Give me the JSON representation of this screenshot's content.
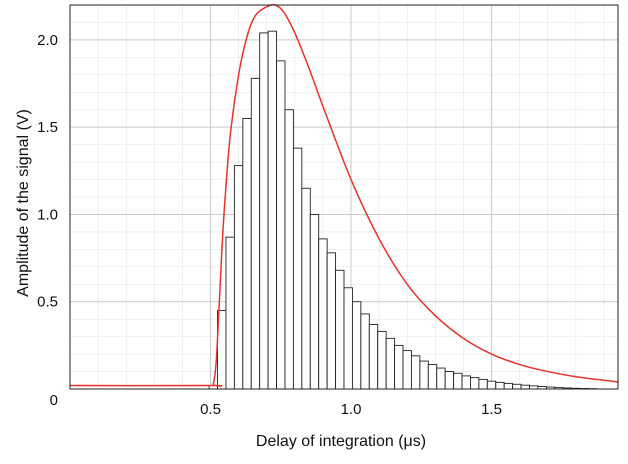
{
  "chart_data": {
    "type": "bar",
    "xlabel": "Delay of integration (μs)",
    "ylabel": "Amplitude of the signal (V)",
    "xlim": [
      0,
      1.95
    ],
    "ylim": [
      0,
      2.2
    ],
    "x_ticks": [
      0.5,
      1.0,
      1.5
    ],
    "x_tick_labels": [
      "0.5",
      "1.0",
      "1.5"
    ],
    "y_ticks": [
      0,
      0.5,
      1.0,
      1.5,
      2.0
    ],
    "y_tick_labels": [
      "0",
      "0.5",
      "1.0",
      "1.5",
      "2.0"
    ],
    "grid": true,
    "histogram": {
      "bin_width": 0.03,
      "bins_left": [
        0.465,
        0.495,
        0.525,
        0.555,
        0.585,
        0.615,
        0.645,
        0.675,
        0.705,
        0.735,
        0.765,
        0.795,
        0.825,
        0.855,
        0.885,
        0.915,
        0.945,
        0.975,
        1.005,
        1.035,
        1.065,
        1.095,
        1.125,
        1.155,
        1.185,
        1.215,
        1.245,
        1.275,
        1.305,
        1.335,
        1.365,
        1.395,
        1.425,
        1.455,
        1.485,
        1.515,
        1.545,
        1.575,
        1.605,
        1.635,
        1.665,
        1.695,
        1.725,
        1.755,
        1.785,
        1.815,
        1.845
      ],
      "values": [
        0.0,
        0.02,
        0.45,
        0.87,
        1.28,
        1.55,
        1.78,
        2.04,
        2.05,
        1.88,
        1.6,
        1.38,
        1.15,
        1.0,
        0.86,
        0.78,
        0.68,
        0.58,
        0.5,
        0.43,
        0.37,
        0.33,
        0.29,
        0.25,
        0.22,
        0.19,
        0.16,
        0.14,
        0.12,
        0.1,
        0.09,
        0.075,
        0.065,
        0.055,
        0.045,
        0.038,
        0.032,
        0.027,
        0.022,
        0.018,
        0.014,
        0.011,
        0.008,
        0.006,
        0.004,
        0.003,
        0.002
      ]
    },
    "curve": {
      "color": "#e8332a",
      "x": [
        0.0,
        0.5,
        0.51,
        0.52,
        0.53,
        0.54,
        0.55,
        0.57,
        0.6,
        0.63,
        0.66,
        0.7,
        0.73,
        0.76,
        0.8,
        0.85,
        0.9,
        1.0,
        1.1,
        1.2,
        1.3,
        1.4,
        1.5,
        1.6,
        1.7,
        1.8,
        1.9,
        1.95
      ],
      "y": [
        0.02,
        0.02,
        0.03,
        0.15,
        0.45,
        0.78,
        1.05,
        1.45,
        1.8,
        2.02,
        2.14,
        2.19,
        2.2,
        2.16,
        2.04,
        1.84,
        1.62,
        1.2,
        0.86,
        0.6,
        0.42,
        0.29,
        0.2,
        0.14,
        0.1,
        0.07,
        0.05,
        0.04
      ]
    },
    "bar_fill": "#ffffff",
    "bar_stroke": "#222222",
    "grid_major_color": "#cccccc",
    "grid_minor_color": "#e6e6e6"
  }
}
